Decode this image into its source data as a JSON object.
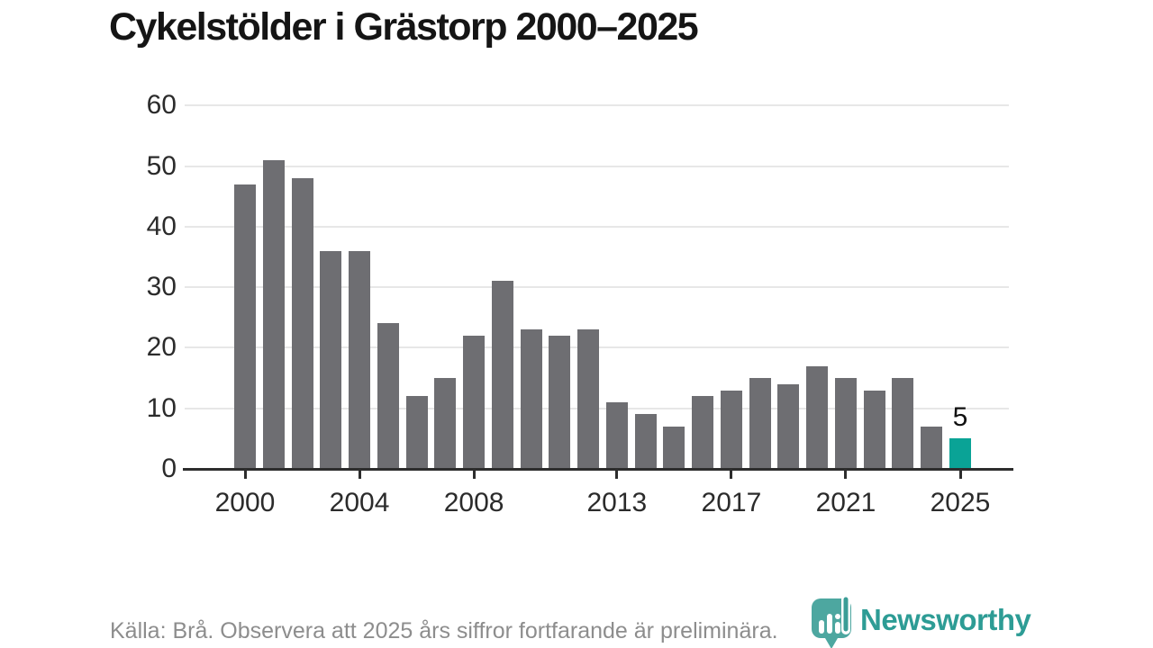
{
  "title": "Cykelstölder i Grästorp 2000–2025",
  "footer": {
    "source_note": "Källa: Brå. Observera att 2025 års siffror fortfarande är preliminära."
  },
  "branding": {
    "logo_text": "Newsworthy",
    "brand_color": "#2d9c95"
  },
  "chart_data": {
    "type": "bar",
    "title": "Cykelstölder i Grästorp 2000–2025",
    "xlabel": "",
    "ylabel": "",
    "categories": [
      "2000",
      "2001",
      "2002",
      "2003",
      "2004",
      "2005",
      "2006",
      "2007",
      "2008",
      "2009",
      "2010",
      "2011",
      "2012",
      "2013",
      "2014",
      "2015",
      "2016",
      "2017",
      "2018",
      "2019",
      "2020",
      "2021",
      "2022",
      "2023",
      "2024",
      "2025"
    ],
    "values": [
      47,
      51,
      48,
      36,
      36,
      24,
      12,
      15,
      22,
      31,
      23,
      22,
      23,
      11,
      9,
      7,
      12,
      13,
      15,
      14,
      17,
      15,
      13,
      15,
      7,
      5
    ],
    "ylim": [
      0,
      60
    ],
    "yticks": [
      0,
      10,
      20,
      30,
      40,
      50,
      60
    ],
    "xticks": [
      "2000",
      "2004",
      "2008",
      "2013",
      "2017",
      "2021",
      "2025"
    ],
    "grid": true,
    "legend": "none",
    "bar_color": "#6e6e72",
    "highlight_color": "#0aa396",
    "highlight_category": "2025",
    "value_label": {
      "category": "2025",
      "text": "5"
    }
  }
}
